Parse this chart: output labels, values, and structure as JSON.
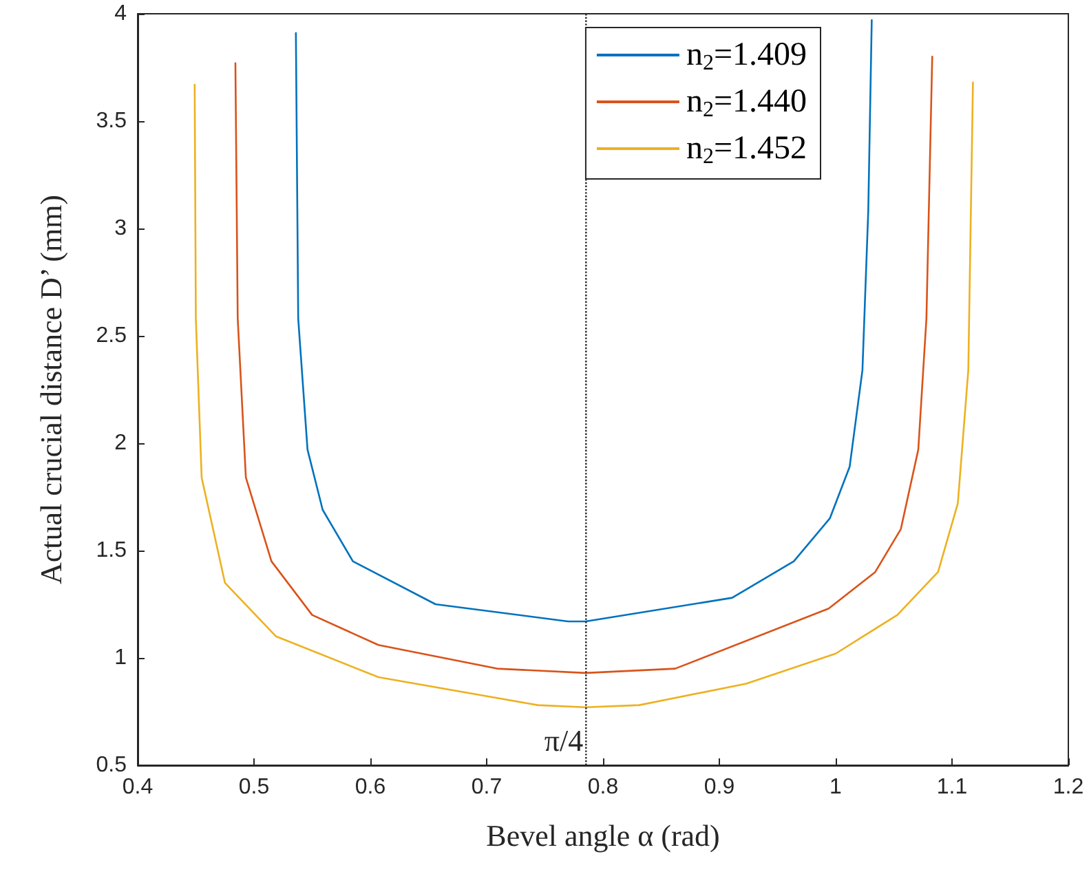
{
  "chart_data": {
    "type": "line",
    "xlabel": "Bevel angle α (rad)",
    "ylabel": "Actual crucial distance D’ (mm)",
    "xlim": [
      0.4,
      1.2
    ],
    "xticks": [
      0.4,
      0.5,
      0.6,
      0.7,
      0.8,
      0.9,
      1,
      1.1,
      1.2
    ],
    "ylim": [
      0.5,
      4
    ],
    "yticks": [
      0.5,
      1,
      1.5,
      2,
      2.5,
      3,
      3.5,
      4
    ],
    "grid": false,
    "legend": "top right",
    "marker": "none",
    "line_style": "solid",
    "ref_lines": [
      {
        "axis": "x",
        "value": 0.7854,
        "label": "π/4",
        "color": "#262626",
        "line_style": "dotted"
      }
    ],
    "series": [
      {
        "name": "n$_{2}$=1.409",
        "color": "#0072bd",
        "x": [
          0.536,
          0.538,
          0.546,
          0.559,
          0.585,
          0.656,
          0.77,
          0.785,
          0.911,
          0.964,
          0.995,
          1.012,
          1.023,
          1.028,
          1.031
        ],
        "values": [
          3.91,
          2.58,
          1.97,
          1.69,
          1.45,
          1.25,
          1.17,
          1.17,
          1.28,
          1.45,
          1.65,
          1.89,
          2.34,
          3.08,
          3.97
        ]
      },
      {
        "name": "n$_{2}$=1.440",
        "color": "#d95319",
        "x": [
          0.484,
          0.486,
          0.493,
          0.515,
          0.55,
          0.607,
          0.709,
          0.785,
          0.862,
          0.994,
          1.034,
          1.056,
          1.071,
          1.078,
          1.083
        ],
        "values": [
          3.77,
          2.58,
          1.84,
          1.45,
          1.2,
          1.06,
          0.95,
          0.93,
          0.95,
          1.23,
          1.4,
          1.6,
          1.97,
          2.58,
          3.8
        ]
      },
      {
        "name": "n$_{2}$=1.452",
        "color": "#edb120",
        "x": [
          0.449,
          0.45,
          0.455,
          0.475,
          0.519,
          0.607,
          0.744,
          0.785,
          0.831,
          0.923,
          1.0,
          1.053,
          1.088,
          1.105,
          1.114,
          1.118
        ],
        "values": [
          3.67,
          2.58,
          1.84,
          1.35,
          1.1,
          0.91,
          0.78,
          0.77,
          0.78,
          0.88,
          1.02,
          1.2,
          1.4,
          1.72,
          2.34,
          3.68
        ]
      }
    ]
  }
}
